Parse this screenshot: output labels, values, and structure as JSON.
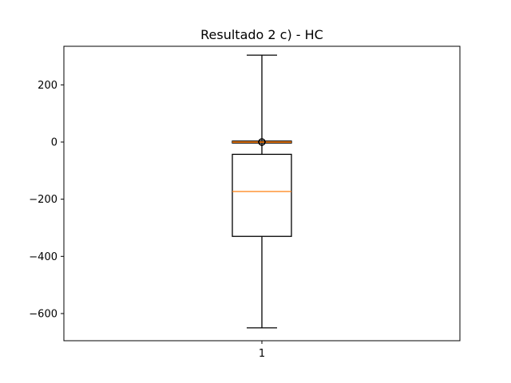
{
  "chart_data": {
    "type": "box",
    "title": "Resultado 2 c) - HC",
    "xlabel": "",
    "ylabel": "",
    "ylim": [
      -695,
      335
    ],
    "yticks": [
      200,
      0,
      -200,
      -400,
      -600
    ],
    "ytick_labels": [
      "200",
      "0",
      "−200",
      "−400",
      "−600"
    ],
    "xtick_labels": [
      "1"
    ],
    "grid": false,
    "boxes": [
      {
        "position": 1,
        "whisker_low": -650,
        "q1": -330,
        "median": -173,
        "q3": -43,
        "whisker_high": 304,
        "outliers": [
          0,
          0,
          0
        ]
      }
    ],
    "overlay": {
      "description_color": "#ff7f0e",
      "y": 0
    },
    "colors": {
      "box": "#000000",
      "median": "#ff7f0e",
      "outlier": "#000000"
    }
  }
}
